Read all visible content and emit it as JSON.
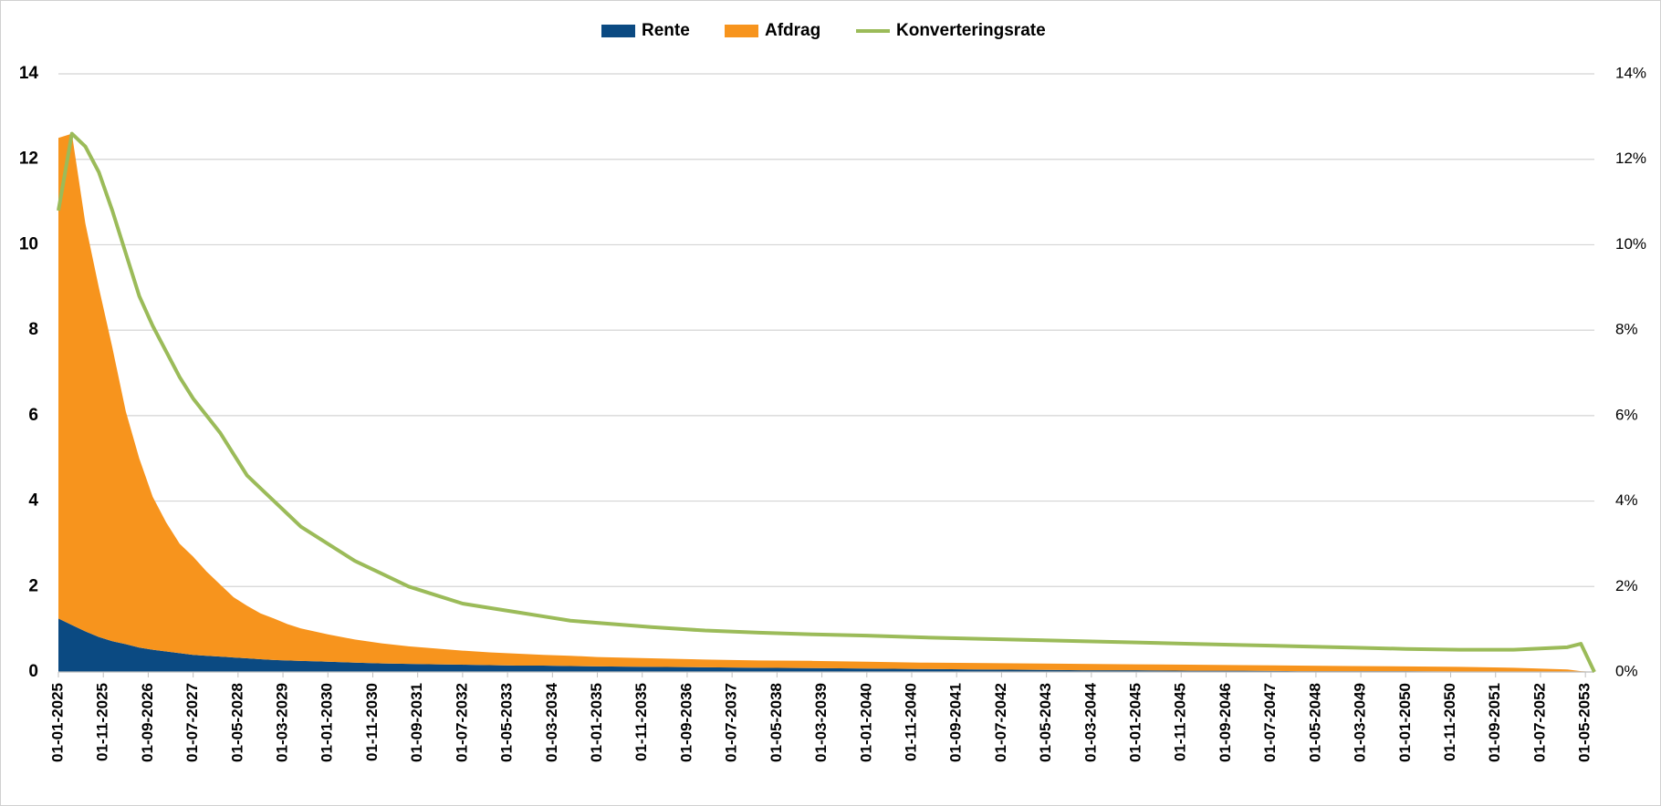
{
  "chart_data": {
    "type": "stacked-area-line",
    "x": [
      "01-01-2025",
      "01-04-2025",
      "01-07-2025",
      "01-10-2025",
      "01-01-2026",
      "01-04-2026",
      "01-07-2026",
      "01-10-2026",
      "01-01-2027",
      "01-04-2027",
      "01-07-2027",
      "01-10-2027",
      "01-01-2028",
      "01-04-2028",
      "01-07-2028",
      "01-10-2028",
      "01-01-2029",
      "01-04-2029",
      "01-07-2029",
      "01-10-2029",
      "01-01-2030",
      "01-07-2030",
      "01-01-2031",
      "01-07-2031",
      "01-01-2032",
      "01-07-2032",
      "01-01-2033",
      "01-07-2033",
      "01-01-2034",
      "01-07-2034",
      "01-01-2035",
      "01-01-2036",
      "01-01-2037",
      "01-01-2038",
      "01-01-2039",
      "01-01-2040",
      "01-01-2041",
      "01-01-2042",
      "01-01-2043",
      "01-01-2044",
      "01-01-2045",
      "01-01-2046",
      "01-01-2047",
      "01-01-2048",
      "01-01-2049",
      "01-01-2050",
      "01-01-2051",
      "01-01-2052",
      "01-01-2053",
      "01-04-2053",
      "01-07-2053"
    ],
    "series": [
      {
        "name": "Rente",
        "color": "#0b4a82",
        "kind": "area",
        "values": [
          1.25,
          1.1,
          0.95,
          0.82,
          0.72,
          0.65,
          0.57,
          0.52,
          0.48,
          0.44,
          0.4,
          0.38,
          0.36,
          0.34,
          0.32,
          0.3,
          0.28,
          0.27,
          0.26,
          0.25,
          0.24,
          0.22,
          0.2,
          0.19,
          0.18,
          0.17,
          0.16,
          0.15,
          0.15,
          0.14,
          0.13,
          0.12,
          0.11,
          0.1,
          0.09,
          0.08,
          0.07,
          0.06,
          0.05,
          0.04,
          0.04,
          0.03,
          0.03,
          0.02,
          0.02,
          0.02,
          0.01,
          0.01,
          0.01,
          0,
          0
        ]
      },
      {
        "name": "Afdrag",
        "color": "#f7941d",
        "kind": "area",
        "values": [
          11.25,
          11.5,
          9.55,
          8.18,
          6.88,
          5.45,
          4.43,
          3.58,
          3.02,
          2.56,
          2.3,
          1.97,
          1.69,
          1.41,
          1.23,
          1.07,
          0.97,
          0.85,
          0.76,
          0.7,
          0.64,
          0.54,
          0.47,
          0.41,
          0.37,
          0.33,
          0.3,
          0.28,
          0.25,
          0.24,
          0.22,
          0.2,
          0.18,
          0.17,
          0.17,
          0.16,
          0.15,
          0.15,
          0.15,
          0.15,
          0.14,
          0.14,
          0.13,
          0.13,
          0.12,
          0.11,
          0.11,
          0.09,
          0.05,
          0.02,
          0
        ]
      },
      {
        "name": "Konverteringsrate",
        "color": "#9bbb59",
        "kind": "line",
        "axis": "y2",
        "values": [
          10.8,
          12.6,
          12.3,
          11.7,
          10.8,
          9.8,
          8.8,
          8.1,
          7.5,
          6.9,
          6.4,
          6.0,
          5.6,
          5.1,
          4.6,
          4.3,
          4.0,
          3.7,
          3.4,
          3.2,
          3.0,
          2.6,
          2.3,
          2.0,
          1.8,
          1.6,
          1.5,
          1.4,
          1.3,
          1.2,
          1.15,
          1.05,
          0.97,
          0.92,
          0.88,
          0.85,
          0.81,
          0.78,
          0.75,
          0.72,
          0.69,
          0.66,
          0.63,
          0.6,
          0.57,
          0.54,
          0.52,
          0.52,
          0.58,
          0.66,
          0
        ]
      }
    ],
    "xlim": [
      "01-01-2025",
      "01-07-2053"
    ],
    "xticks": [
      "01-01-2025",
      "01-11-2025",
      "01-09-2026",
      "01-07-2027",
      "01-05-2028",
      "01-03-2029",
      "01-01-2030",
      "01-11-2030",
      "01-09-2031",
      "01-07-2032",
      "01-05-2033",
      "01-03-2034",
      "01-01-2035",
      "01-11-2035",
      "01-09-2036",
      "01-07-2037",
      "01-05-2038",
      "01-03-2039",
      "01-01-2040",
      "01-11-2040",
      "01-09-2041",
      "01-07-2042",
      "01-05-2043",
      "01-03-2044",
      "01-01-2045",
      "01-11-2045",
      "01-09-2046",
      "01-07-2047",
      "01-05-2048",
      "01-03-2049",
      "01-01-2050",
      "01-11-2050",
      "01-09-2051",
      "01-07-2052",
      "01-05-2053"
    ],
    "ylim": [
      0,
      14
    ],
    "yticks": [
      0,
      2,
      4,
      6,
      8,
      10,
      12,
      14
    ],
    "y2lim": [
      0,
      14
    ],
    "y2ticks": [
      {
        "value": 0,
        "label": "0%"
      },
      {
        "value": 2,
        "label": "2%"
      },
      {
        "value": 4,
        "label": "4%"
      },
      {
        "value": 6,
        "label": "6%"
      },
      {
        "value": 8,
        "label": "8%"
      },
      {
        "value": 10,
        "label": "10%"
      },
      {
        "value": 12,
        "label": "12%"
      },
      {
        "value": 14,
        "label": "14%"
      }
    ],
    "grid": true,
    "legend": "top"
  }
}
